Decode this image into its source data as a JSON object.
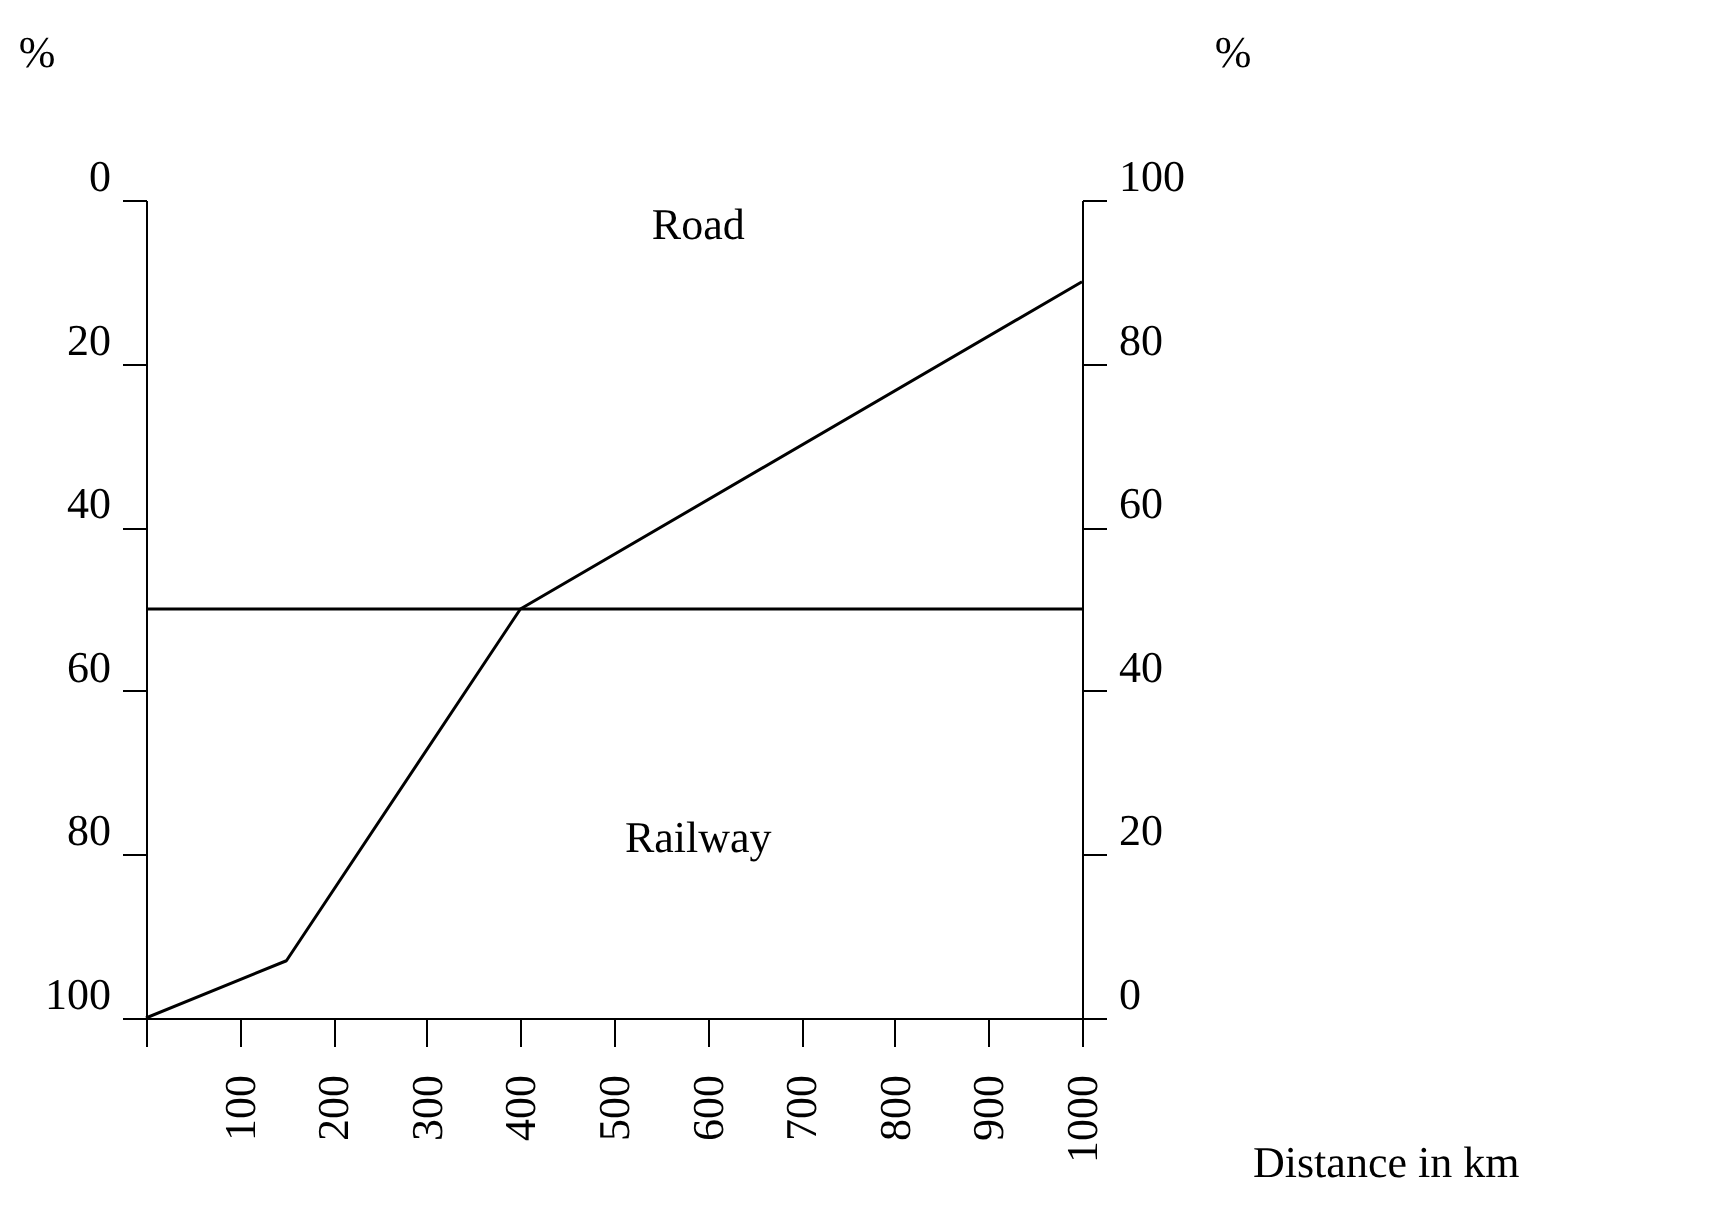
{
  "chart_data": {
    "type": "line",
    "xlabel": "Distance in km",
    "ylabel": "%",
    "y2label": "%",
    "x": [
      0,
      150,
      400,
      1000
    ],
    "series": [
      {
        "color": "#000000",
        "axis": "y2",
        "values": [
          0,
          7,
          50,
          90
        ]
      }
    ],
    "xlim": [
      0,
      1000
    ],
    "xticks": [
      {
        "value": 0,
        "label": null
      },
      100,
      200,
      300,
      400,
      500,
      600,
      700,
      800,
      900,
      1000
    ],
    "ylim": [
      100,
      0
    ],
    "yticks": [
      0,
      20,
      40,
      60,
      80,
      100
    ],
    "y2lim": [
      0,
      100
    ],
    "y2ticks": [
      0,
      20,
      40,
      60,
      80,
      100
    ],
    "ref_lines": [
      {
        "axis": "y",
        "value": 50,
        "color": "#000000"
      }
    ],
    "annotations": [
      "Road",
      "Railway"
    ],
    "marker": "none",
    "line_style": "solid",
    "grid": false
  }
}
